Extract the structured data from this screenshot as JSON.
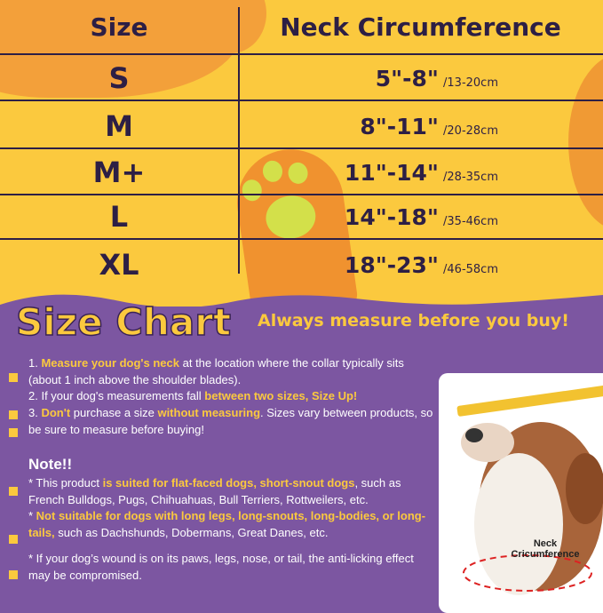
{
  "table": {
    "header": {
      "size": "Size",
      "neck": "Neck Circumference"
    },
    "rows": [
      {
        "size": "S",
        "inches": "5\"-8\"",
        "cm": "/13-20cm"
      },
      {
        "size": "M",
        "inches": "8\"-11\"",
        "cm": "/20-28cm"
      },
      {
        "size": "M+",
        "inches": "11\"-14\"",
        "cm": "/28-35cm"
      },
      {
        "size": "L",
        "inches": "14\"-18\"",
        "cm": "/35-46cm"
      },
      {
        "size": "XL",
        "inches": "18\"-23\"",
        "cm": "/46-58cm"
      }
    ]
  },
  "title": "Size Chart",
  "subtitle": "Always measure before you buy!",
  "instructions": [
    [
      {
        "t": "1. "
      },
      {
        "t": "Measure your dog's neck",
        "h": true
      },
      {
        "t": " at the location where the collar typically sits (about 1 inch above the shoulder blades)."
      }
    ],
    [
      {
        "t": "2. If your dog's measurements fall "
      },
      {
        "t": "between two sizes, Size Up!",
        "h": true
      }
    ],
    [
      {
        "t": "3. "
      },
      {
        "t": "Don't",
        "h": true
      },
      {
        "t": " purchase a size "
      },
      {
        "t": "without measuring",
        "h": true
      },
      {
        "t": ". Sizes vary between products, so be sure to measure before buying!"
      }
    ]
  ],
  "note_title": "Note!!",
  "notes": [
    [
      {
        "t": "* This product "
      },
      {
        "t": "is suited for flat-faced dogs, short-snout dogs",
        "h": true
      },
      {
        "t": ", such as French Bulldogs, Pugs, Chihuahuas, Bull Terriers, Rottweilers, etc."
      }
    ],
    [
      {
        "t": "* "
      },
      {
        "t": "Not suitable for dogs with long legs, long-snouts, long-bodies, or long-tails,",
        "h": true
      },
      {
        "t": " such as Dachshunds, Dobermans, Great Danes, etc."
      }
    ],
    [
      {
        "t": "* If your dog’s wound is on its paws, legs, nose, or tail, the anti-licking effect may be compromised."
      }
    ]
  ],
  "photo": {
    "label": "Neck Cricumference"
  },
  "colors": {
    "yellow": "#fbc93e",
    "orange": "#f09a34",
    "purple": "#7c56a1",
    "dark": "#2d1f45"
  }
}
